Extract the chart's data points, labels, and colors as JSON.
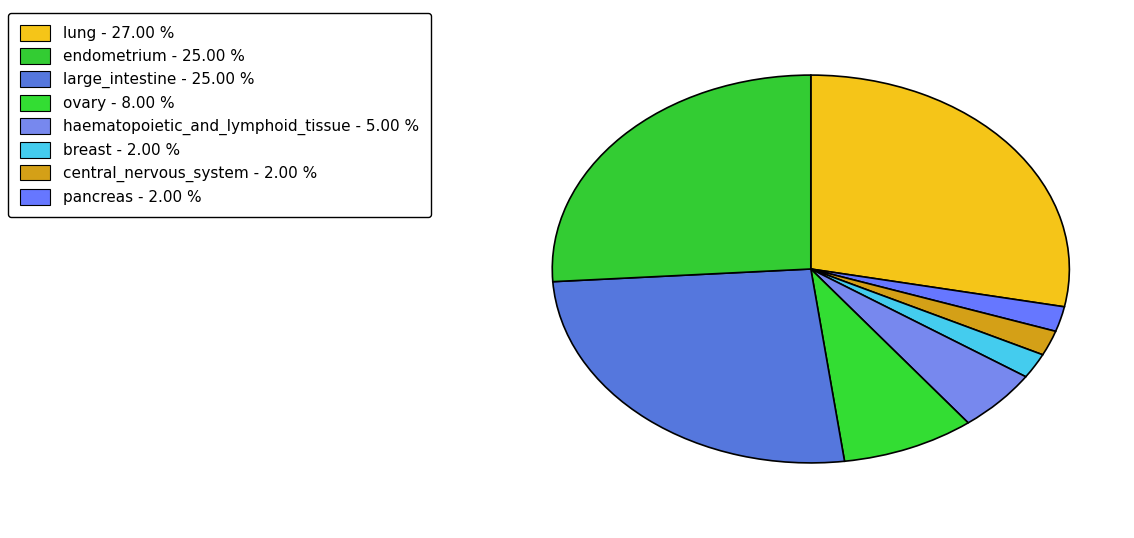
{
  "labels": [
    "lung",
    "pancreas",
    "central_nervous_system",
    "breast",
    "haematopoietic_and_lymphoid_tissue",
    "ovary",
    "large_intestine",
    "endometrium"
  ],
  "values": [
    27,
    2,
    2,
    2,
    5,
    8,
    25,
    25
  ],
  "colors": [
    "#F5C518",
    "#6677FF",
    "#D4A017",
    "#44CCEE",
    "#7788EE",
    "#33DD33",
    "#5577DD",
    "#33CC33"
  ],
  "legend_order_labels": [
    "lung",
    "endometrium",
    "large_intestine",
    "ovary",
    "haematopoietic_and_lymphoid_tissue",
    "breast",
    "central_nervous_system",
    "pancreas"
  ],
  "legend_colors": [
    "#F5C518",
    "#33CC33",
    "#5577DD",
    "#33DD33",
    "#7788EE",
    "#44CCEE",
    "#D4A017",
    "#6677FF"
  ],
  "legend_labels": [
    "lung - 27.00 %",
    "endometrium - 25.00 %",
    "large_intestine - 25.00 %",
    "ovary - 8.00 %",
    "haematopoietic_and_lymphoid_tissue - 5.00 %",
    "breast - 2.00 %",
    "central_nervous_system - 2.00 %",
    "pancreas - 2.00 %"
  ],
  "startangle": 90,
  "figsize": [
    11.34,
    5.38
  ],
  "dpi": 100,
  "aspect_ratio": 0.75
}
